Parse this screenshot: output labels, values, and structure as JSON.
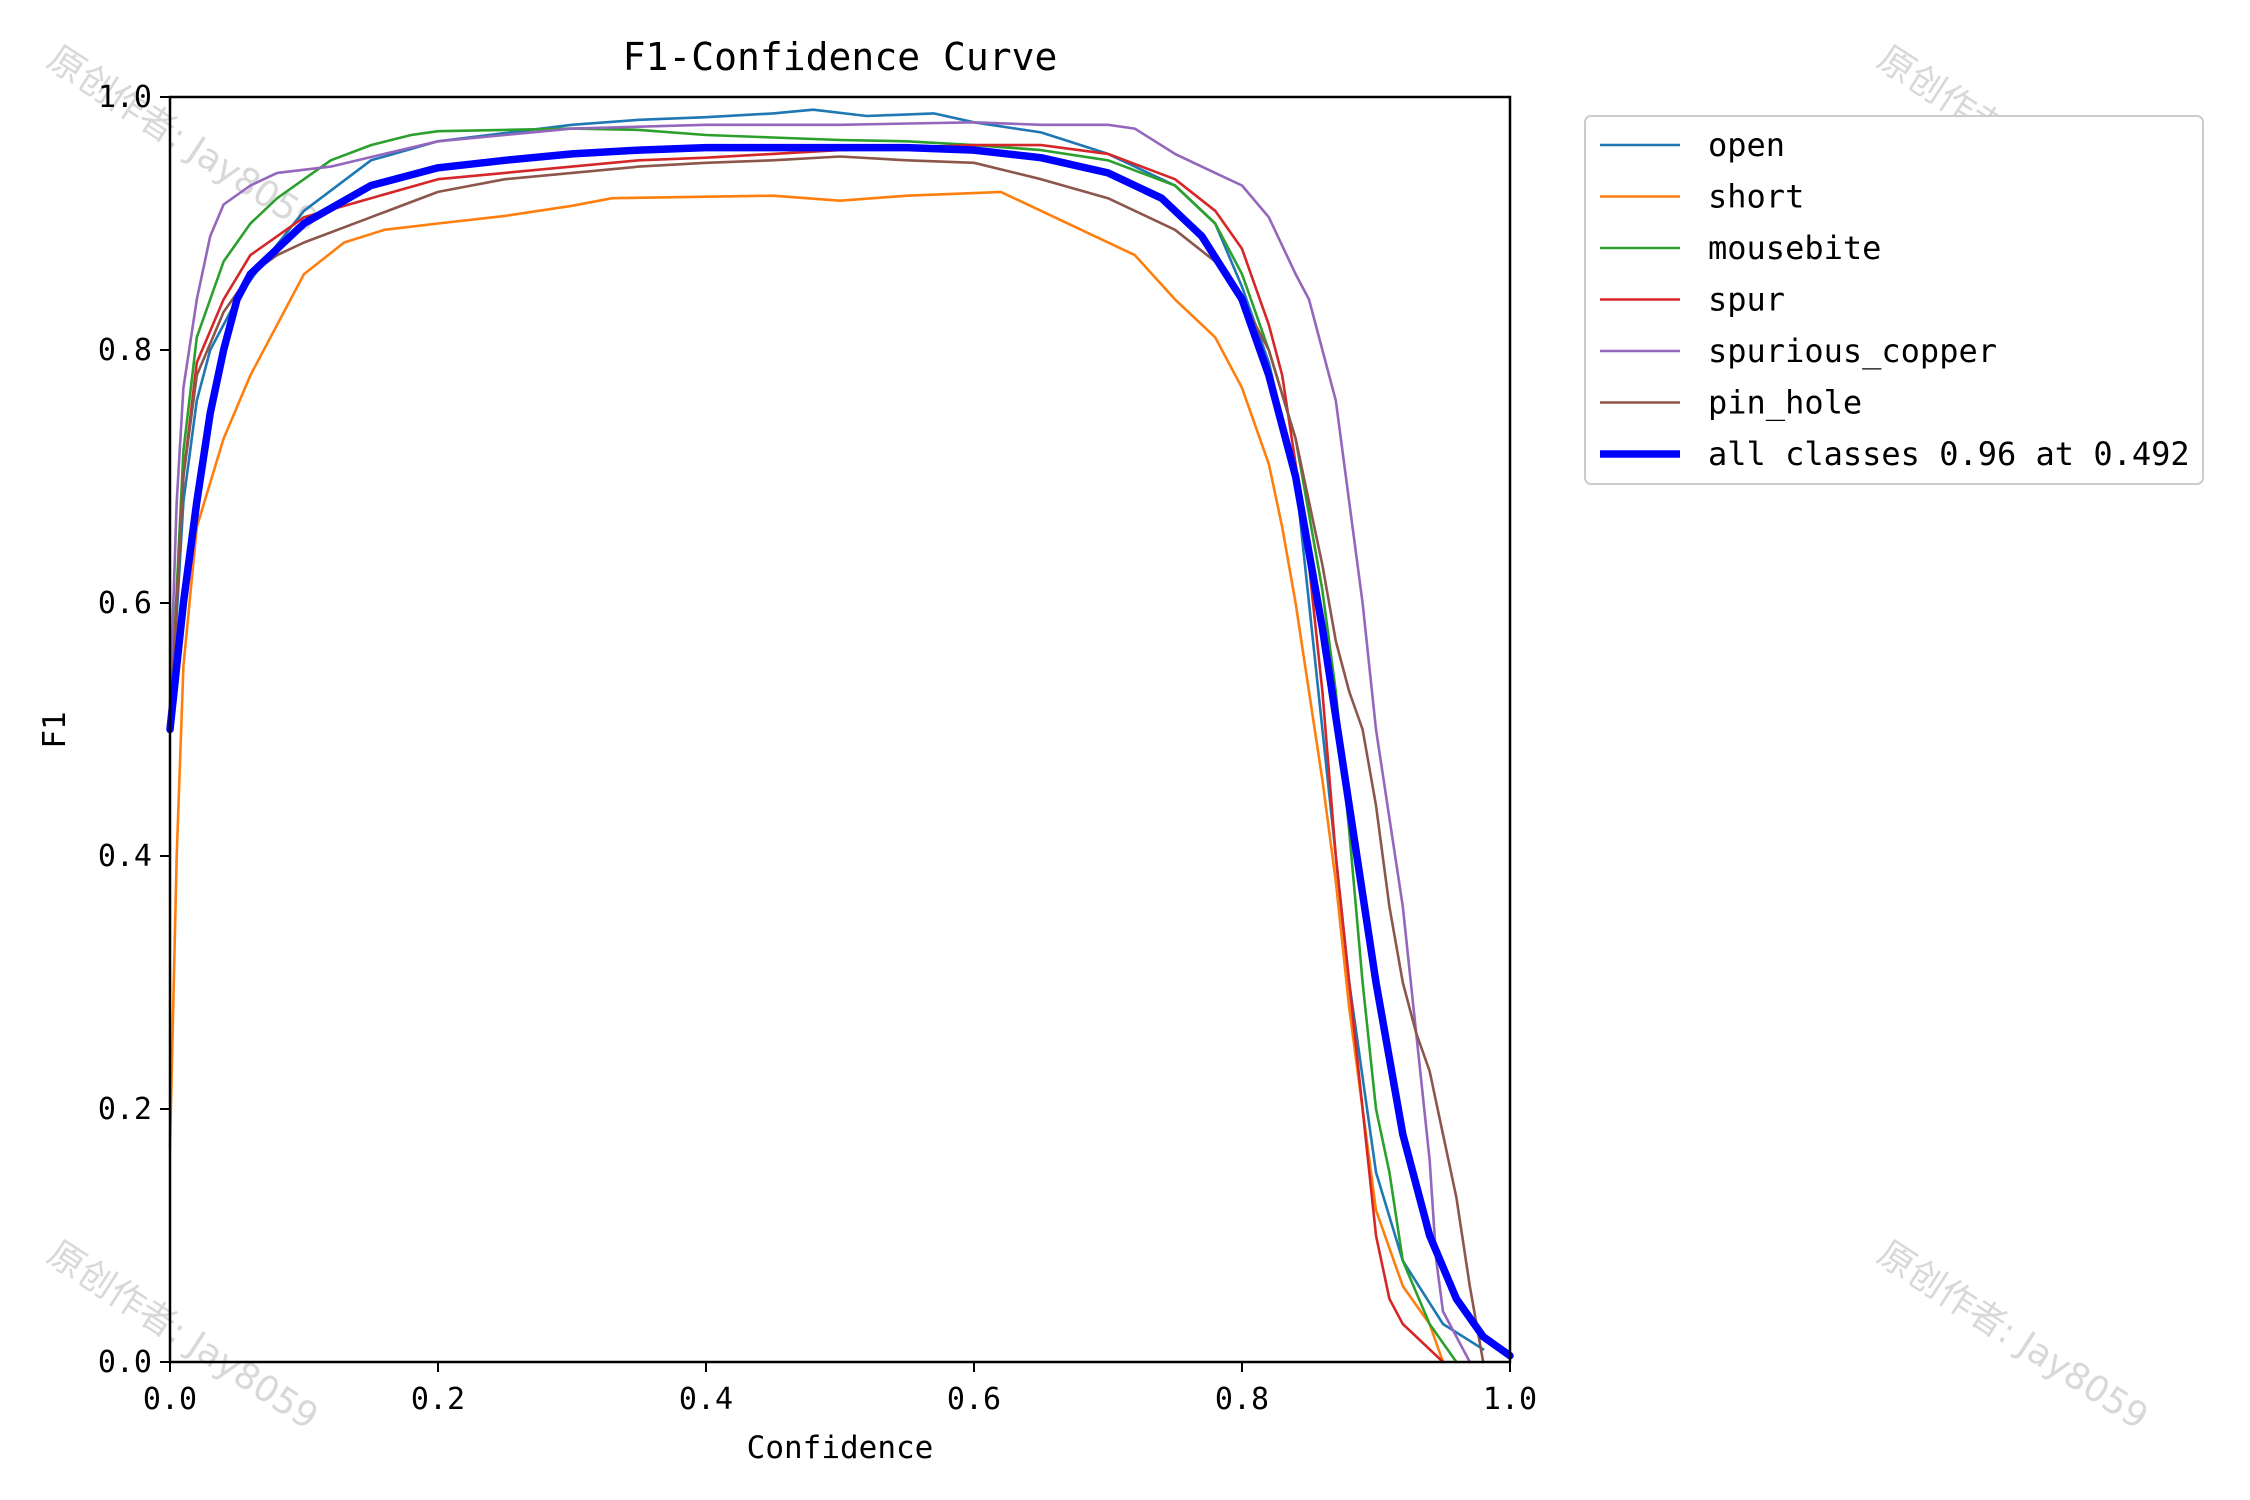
{
  "chart_data": {
    "type": "line",
    "title": "F1-Confidence Curve",
    "xlabel": "Confidence",
    "ylabel": "F1",
    "xlim": [
      0,
      1
    ],
    "ylim": [
      0,
      1
    ],
    "x_ticks": [
      "0.0",
      "0.2",
      "0.4",
      "0.6",
      "0.8",
      "1.0"
    ],
    "y_ticks": [
      "0.0",
      "0.2",
      "0.4",
      "0.6",
      "0.8",
      "1.0"
    ],
    "grid": false,
    "legend_position": "outside-top-right",
    "series": [
      {
        "name": "open",
        "color": "#1f77b4",
        "points": [
          [
            0,
            0.5
          ],
          [
            0.01,
            0.68
          ],
          [
            0.02,
            0.76
          ],
          [
            0.03,
            0.8
          ],
          [
            0.05,
            0.84
          ],
          [
            0.07,
            0.87
          ],
          [
            0.1,
            0.91
          ],
          [
            0.15,
            0.95
          ],
          [
            0.2,
            0.965
          ],
          [
            0.3,
            0.978
          ],
          [
            0.35,
            0.982
          ],
          [
            0.4,
            0.984
          ],
          [
            0.45,
            0.987
          ],
          [
            0.48,
            0.99
          ],
          [
            0.52,
            0.985
          ],
          [
            0.57,
            0.987
          ],
          [
            0.6,
            0.98
          ],
          [
            0.65,
            0.972
          ],
          [
            0.7,
            0.955
          ],
          [
            0.75,
            0.93
          ],
          [
            0.78,
            0.9
          ],
          [
            0.8,
            0.85
          ],
          [
            0.82,
            0.79
          ],
          [
            0.84,
            0.7
          ],
          [
            0.85,
            0.6
          ],
          [
            0.86,
            0.5
          ],
          [
            0.87,
            0.4
          ],
          [
            0.88,
            0.3
          ],
          [
            0.9,
            0.15
          ],
          [
            0.92,
            0.08
          ],
          [
            0.95,
            0.03
          ],
          [
            0.98,
            0.01
          ]
        ]
      },
      {
        "name": "short",
        "color": "#ff7f0e",
        "points": [
          [
            0,
            0.17
          ],
          [
            0.005,
            0.4
          ],
          [
            0.01,
            0.55
          ],
          [
            0.02,
            0.66
          ],
          [
            0.04,
            0.73
          ],
          [
            0.06,
            0.78
          ],
          [
            0.08,
            0.82
          ],
          [
            0.1,
            0.86
          ],
          [
            0.13,
            0.885
          ],
          [
            0.16,
            0.895
          ],
          [
            0.2,
            0.9
          ],
          [
            0.25,
            0.906
          ],
          [
            0.3,
            0.914
          ],
          [
            0.33,
            0.92
          ],
          [
            0.45,
            0.922
          ],
          [
            0.5,
            0.918
          ],
          [
            0.55,
            0.922
          ],
          [
            0.6,
            0.924
          ],
          [
            0.62,
            0.925
          ],
          [
            0.65,
            0.91
          ],
          [
            0.68,
            0.895
          ],
          [
            0.72,
            0.875
          ],
          [
            0.75,
            0.84
          ],
          [
            0.78,
            0.81
          ],
          [
            0.8,
            0.77
          ],
          [
            0.82,
            0.71
          ],
          [
            0.83,
            0.66
          ],
          [
            0.84,
            0.6
          ],
          [
            0.85,
            0.53
          ],
          [
            0.86,
            0.46
          ],
          [
            0.87,
            0.38
          ],
          [
            0.88,
            0.28
          ],
          [
            0.89,
            0.2
          ],
          [
            0.9,
            0.12
          ],
          [
            0.92,
            0.06
          ],
          [
            0.94,
            0.03
          ],
          [
            0.95,
            0
          ]
        ]
      },
      {
        "name": "mousebite",
        "color": "#2ca02c",
        "points": [
          [
            0,
            0.5
          ],
          [
            0.01,
            0.72
          ],
          [
            0.02,
            0.81
          ],
          [
            0.04,
            0.87
          ],
          [
            0.06,
            0.9
          ],
          [
            0.08,
            0.92
          ],
          [
            0.1,
            0.935
          ],
          [
            0.12,
            0.95
          ],
          [
            0.15,
            0.962
          ],
          [
            0.18,
            0.97
          ],
          [
            0.2,
            0.973
          ],
          [
            0.25,
            0.974
          ],
          [
            0.3,
            0.975
          ],
          [
            0.35,
            0.974
          ],
          [
            0.4,
            0.97
          ],
          [
            0.45,
            0.968
          ],
          [
            0.5,
            0.966
          ],
          [
            0.55,
            0.965
          ],
          [
            0.6,
            0.962
          ],
          [
            0.65,
            0.958
          ],
          [
            0.7,
            0.95
          ],
          [
            0.75,
            0.93
          ],
          [
            0.78,
            0.9
          ],
          [
            0.8,
            0.86
          ],
          [
            0.82,
            0.8
          ],
          [
            0.84,
            0.73
          ],
          [
            0.85,
            0.67
          ],
          [
            0.86,
            0.61
          ],
          [
            0.87,
            0.53
          ],
          [
            0.88,
            0.42
          ],
          [
            0.89,
            0.3
          ],
          [
            0.9,
            0.2
          ],
          [
            0.91,
            0.15
          ],
          [
            0.92,
            0.08
          ],
          [
            0.94,
            0.03
          ],
          [
            0.96,
            0
          ]
        ]
      },
      {
        "name": "spur",
        "color": "#d62728",
        "points": [
          [
            0,
            0.5
          ],
          [
            0.01,
            0.7
          ],
          [
            0.02,
            0.79
          ],
          [
            0.04,
            0.84
          ],
          [
            0.06,
            0.875
          ],
          [
            0.08,
            0.89
          ],
          [
            0.1,
            0.905
          ],
          [
            0.15,
            0.92
          ],
          [
            0.2,
            0.935
          ],
          [
            0.25,
            0.94
          ],
          [
            0.3,
            0.945
          ],
          [
            0.35,
            0.95
          ],
          [
            0.4,
            0.952
          ],
          [
            0.45,
            0.955
          ],
          [
            0.5,
            0.958
          ],
          [
            0.55,
            0.96
          ],
          [
            0.6,
            0.962
          ],
          [
            0.65,
            0.962
          ],
          [
            0.7,
            0.955
          ],
          [
            0.75,
            0.935
          ],
          [
            0.78,
            0.91
          ],
          [
            0.8,
            0.88
          ],
          [
            0.81,
            0.85
          ],
          [
            0.82,
            0.82
          ],
          [
            0.83,
            0.78
          ],
          [
            0.84,
            0.71
          ],
          [
            0.85,
            0.63
          ],
          [
            0.86,
            0.53
          ],
          [
            0.87,
            0.4
          ],
          [
            0.88,
            0.3
          ],
          [
            0.89,
            0.2
          ],
          [
            0.9,
            0.1
          ],
          [
            0.91,
            0.05
          ],
          [
            0.92,
            0.03
          ],
          [
            0.94,
            0.01
          ],
          [
            0.95,
            0
          ]
        ]
      },
      {
        "name": "spurious_copper",
        "color": "#9467bd",
        "points": [
          [
            0,
            0.52
          ],
          [
            0.005,
            0.68
          ],
          [
            0.01,
            0.77
          ],
          [
            0.02,
            0.84
          ],
          [
            0.03,
            0.89
          ],
          [
            0.04,
            0.915
          ],
          [
            0.06,
            0.93
          ],
          [
            0.08,
            0.94
          ],
          [
            0.12,
            0.945
          ],
          [
            0.16,
            0.955
          ],
          [
            0.2,
            0.965
          ],
          [
            0.25,
            0.97
          ],
          [
            0.3,
            0.975
          ],
          [
            0.4,
            0.978
          ],
          [
            0.5,
            0.978
          ],
          [
            0.6,
            0.98
          ],
          [
            0.65,
            0.978
          ],
          [
            0.7,
            0.978
          ],
          [
            0.72,
            0.975
          ],
          [
            0.75,
            0.955
          ],
          [
            0.78,
            0.94
          ],
          [
            0.8,
            0.93
          ],
          [
            0.82,
            0.905
          ],
          [
            0.84,
            0.86
          ],
          [
            0.85,
            0.84
          ],
          [
            0.86,
            0.8
          ],
          [
            0.87,
            0.76
          ],
          [
            0.88,
            0.68
          ],
          [
            0.89,
            0.6
          ],
          [
            0.9,
            0.5
          ],
          [
            0.91,
            0.43
          ],
          [
            0.92,
            0.36
          ],
          [
            0.93,
            0.26
          ],
          [
            0.94,
            0.16
          ],
          [
            0.945,
            0.08
          ],
          [
            0.95,
            0.04
          ],
          [
            0.96,
            0.02
          ],
          [
            0.97,
            0
          ]
        ]
      },
      {
        "name": "pin_hole",
        "color": "#8c564b",
        "points": [
          [
            0,
            0.5
          ],
          [
            0.01,
            0.7
          ],
          [
            0.02,
            0.78
          ],
          [
            0.04,
            0.83
          ],
          [
            0.06,
            0.86
          ],
          [
            0.08,
            0.875
          ],
          [
            0.1,
            0.885
          ],
          [
            0.15,
            0.905
          ],
          [
            0.2,
            0.925
          ],
          [
            0.25,
            0.935
          ],
          [
            0.3,
            0.94
          ],
          [
            0.35,
            0.945
          ],
          [
            0.4,
            0.948
          ],
          [
            0.45,
            0.95
          ],
          [
            0.5,
            0.953
          ],
          [
            0.55,
            0.95
          ],
          [
            0.6,
            0.948
          ],
          [
            0.65,
            0.935
          ],
          [
            0.7,
            0.92
          ],
          [
            0.75,
            0.895
          ],
          [
            0.78,
            0.87
          ],
          [
            0.8,
            0.84
          ],
          [
            0.82,
            0.8
          ],
          [
            0.84,
            0.73
          ],
          [
            0.86,
            0.63
          ],
          [
            0.87,
            0.57
          ],
          [
            0.88,
            0.53
          ],
          [
            0.89,
            0.5
          ],
          [
            0.9,
            0.44
          ],
          [
            0.91,
            0.36
          ],
          [
            0.92,
            0.3
          ],
          [
            0.93,
            0.26
          ],
          [
            0.94,
            0.23
          ],
          [
            0.95,
            0.18
          ],
          [
            0.96,
            0.13
          ],
          [
            0.97,
            0.06
          ],
          [
            0.98,
            0
          ]
        ]
      },
      {
        "name": "all classes 0.96 at 0.492",
        "color": "#0000ff",
        "bold": true,
        "points": [
          [
            0,
            0.5
          ],
          [
            0.01,
            0.6
          ],
          [
            0.02,
            0.68
          ],
          [
            0.03,
            0.75
          ],
          [
            0.04,
            0.8
          ],
          [
            0.05,
            0.84
          ],
          [
            0.06,
            0.86
          ],
          [
            0.08,
            0.88
          ],
          [
            0.1,
            0.9
          ],
          [
            0.15,
            0.93
          ],
          [
            0.2,
            0.944
          ],
          [
            0.25,
            0.95
          ],
          [
            0.3,
            0.955
          ],
          [
            0.35,
            0.958
          ],
          [
            0.4,
            0.96
          ],
          [
            0.492,
            0.96
          ],
          [
            0.55,
            0.96
          ],
          [
            0.6,
            0.958
          ],
          [
            0.65,
            0.952
          ],
          [
            0.7,
            0.94
          ],
          [
            0.74,
            0.92
          ],
          [
            0.77,
            0.89
          ],
          [
            0.8,
            0.84
          ],
          [
            0.82,
            0.78
          ],
          [
            0.84,
            0.7
          ],
          [
            0.86,
            0.58
          ],
          [
            0.88,
            0.44
          ],
          [
            0.9,
            0.3
          ],
          [
            0.92,
            0.18
          ],
          [
            0.94,
            0.1
          ],
          [
            0.96,
            0.05
          ],
          [
            0.98,
            0.02
          ],
          [
            1.0,
            0.005
          ]
        ]
      }
    ]
  },
  "watermark": {
    "text": "原创作者: Jay8059",
    "color": "#cccccc"
  }
}
